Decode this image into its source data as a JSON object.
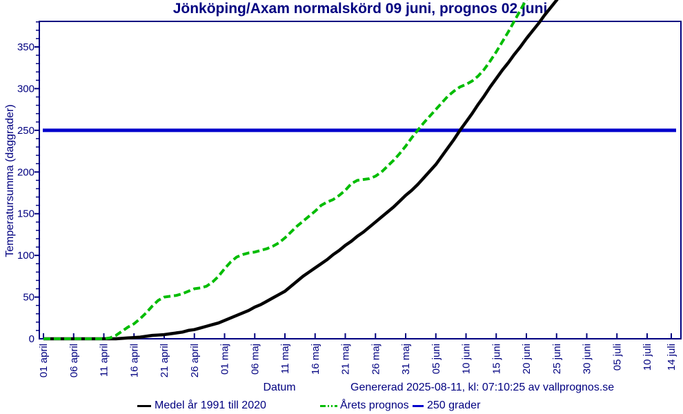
{
  "title": "Jönköping/Axam normalskörd 09 juni, prognos 02 juni",
  "footer": {
    "xlabel": "Datum",
    "generated": "Genererad 2025-08-11, kl: 07:10:25 av vallprognos.se"
  },
  "colors": {
    "text_navy": "#000080",
    "frame_navy": "#000080",
    "mean_line": "#000000",
    "forecast_line": "#00bc00",
    "threshold_line": "#0000cc"
  },
  "chart_data": {
    "type": "line",
    "title": "Jönköping/Axam normalskörd 09 juni, prognos 02 juni",
    "xlabel": "Datum",
    "ylabel": "Temperatursumma (daggrader)",
    "ylim": [
      0,
      380
    ],
    "y_major_ticks": [
      0,
      50,
      100,
      150,
      200,
      250,
      300,
      350
    ],
    "y_minor_step": 10,
    "grid": false,
    "legend_position": "bottom",
    "x_ticks": [
      {
        "day": 0,
        "label": "01 april"
      },
      {
        "day": 5,
        "label": "06 april"
      },
      {
        "day": 10,
        "label": "11 april"
      },
      {
        "day": 15,
        "label": "16 april"
      },
      {
        "day": 20,
        "label": "21 april"
      },
      {
        "day": 25,
        "label": "26 april"
      },
      {
        "day": 30,
        "label": "01 maj"
      },
      {
        "day": 35,
        "label": "06 maj"
      },
      {
        "day": 40,
        "label": "11 maj"
      },
      {
        "day": 45,
        "label": "16 maj"
      },
      {
        "day": 50,
        "label": "21 maj"
      },
      {
        "day": 55,
        "label": "26 maj"
      },
      {
        "day": 60,
        "label": "31 maj"
      },
      {
        "day": 65,
        "label": "05 juni"
      },
      {
        "day": 70,
        "label": "10 juni"
      },
      {
        "day": 75,
        "label": "15 juni"
      },
      {
        "day": 80,
        "label": "20 juni"
      },
      {
        "day": 85,
        "label": "25 juni"
      },
      {
        "day": 90,
        "label": "30 juni"
      },
      {
        "day": 95,
        "label": "05 juli"
      },
      {
        "day": 100,
        "label": "10 juli"
      },
      {
        "day": 104,
        "label": "14 juli"
      }
    ],
    "series": [
      {
        "name": "Medel år 1991 till 2020",
        "type": "line",
        "style": "solid",
        "color": "#000000",
        "points": [
          [
            0,
            0
          ],
          [
            5,
            0
          ],
          [
            10,
            0
          ],
          [
            12,
            0
          ],
          [
            13,
            0.5
          ],
          [
            14,
            1
          ],
          [
            15,
            1.5
          ],
          [
            16,
            2
          ],
          [
            17,
            3
          ],
          [
            18,
            4
          ],
          [
            19,
            4.5
          ],
          [
            20,
            5
          ],
          [
            21,
            6
          ],
          [
            22,
            7
          ],
          [
            23,
            8
          ],
          [
            24,
            10
          ],
          [
            25,
            11
          ],
          [
            26,
            13
          ],
          [
            27,
            15
          ],
          [
            28,
            17
          ],
          [
            29,
            19
          ],
          [
            30,
            22
          ],
          [
            31,
            25
          ],
          [
            32,
            28
          ],
          [
            33,
            31
          ],
          [
            34,
            34
          ],
          [
            35,
            38
          ],
          [
            36,
            41
          ],
          [
            37,
            45
          ],
          [
            38,
            49
          ],
          [
            39,
            53
          ],
          [
            40,
            57
          ],
          [
            41,
            63
          ],
          [
            42,
            69
          ],
          [
            43,
            75
          ],
          [
            44,
            80
          ],
          [
            45,
            85
          ],
          [
            46,
            90
          ],
          [
            47,
            95
          ],
          [
            48,
            101
          ],
          [
            49,
            106
          ],
          [
            50,
            112
          ],
          [
            51,
            117
          ],
          [
            52,
            123
          ],
          [
            53,
            128
          ],
          [
            54,
            134
          ],
          [
            55,
            140
          ],
          [
            56,
            146
          ],
          [
            57,
            152
          ],
          [
            58,
            158
          ],
          [
            59,
            165
          ],
          [
            60,
            172
          ],
          [
            61,
            178
          ],
          [
            62,
            185
          ],
          [
            63,
            193
          ],
          [
            64,
            201
          ],
          [
            65,
            209
          ],
          [
            66,
            219
          ],
          [
            67,
            229
          ],
          [
            68,
            239
          ],
          [
            69,
            250
          ],
          [
            70,
            260
          ],
          [
            71,
            270
          ],
          [
            72,
            281
          ],
          [
            73,
            291
          ],
          [
            74,
            302
          ],
          [
            75,
            312
          ],
          [
            76,
            322
          ],
          [
            77,
            331
          ],
          [
            78,
            341
          ],
          [
            79,
            350
          ],
          [
            80,
            360
          ],
          [
            81,
            369
          ],
          [
            82,
            378
          ],
          [
            83,
            388
          ],
          [
            84,
            397
          ],
          [
            85,
            406
          ],
          [
            86,
            416
          ]
        ]
      },
      {
        "name": "Årets prognos",
        "type": "line",
        "style": "dashed",
        "color": "#00bc00",
        "points": [
          [
            0,
            0
          ],
          [
            2,
            0
          ],
          [
            4,
            0
          ],
          [
            6,
            0
          ],
          [
            8,
            0
          ],
          [
            10,
            0
          ],
          [
            11,
            1
          ],
          [
            12,
            4
          ],
          [
            13,
            9
          ],
          [
            14,
            14
          ],
          [
            15,
            18
          ],
          [
            16,
            24
          ],
          [
            17,
            31
          ],
          [
            18,
            39
          ],
          [
            19,
            46
          ],
          [
            20,
            50
          ],
          [
            21,
            51
          ],
          [
            22,
            52
          ],
          [
            23,
            54
          ],
          [
            24,
            57
          ],
          [
            25,
            60
          ],
          [
            26,
            61
          ],
          [
            27,
            63
          ],
          [
            28,
            68
          ],
          [
            29,
            75
          ],
          [
            30,
            84
          ],
          [
            31,
            92
          ],
          [
            32,
            98
          ],
          [
            33,
            101
          ],
          [
            34,
            103
          ],
          [
            35,
            104
          ],
          [
            36,
            106
          ],
          [
            37,
            108
          ],
          [
            38,
            111
          ],
          [
            39,
            115
          ],
          [
            40,
            121
          ],
          [
            41,
            128
          ],
          [
            42,
            135
          ],
          [
            43,
            141
          ],
          [
            44,
            147
          ],
          [
            45,
            153
          ],
          [
            46,
            160
          ],
          [
            47,
            164
          ],
          [
            48,
            167
          ],
          [
            49,
            172
          ],
          [
            50,
            178
          ],
          [
            51,
            186
          ],
          [
            52,
            190
          ],
          [
            53,
            191
          ],
          [
            54,
            192
          ],
          [
            55,
            195
          ],
          [
            56,
            200
          ],
          [
            57,
            207
          ],
          [
            58,
            214
          ],
          [
            59,
            222
          ],
          [
            60,
            231
          ],
          [
            61,
            241
          ],
          [
            62,
            250
          ],
          [
            63,
            259
          ],
          [
            64,
            267
          ],
          [
            65,
            275
          ],
          [
            66,
            283
          ],
          [
            67,
            291
          ],
          [
            68,
            297
          ],
          [
            69,
            302
          ],
          [
            70,
            305
          ],
          [
            71,
            309
          ],
          [
            72,
            315
          ],
          [
            73,
            323
          ],
          [
            74,
            333
          ],
          [
            75,
            344
          ],
          [
            76,
            356
          ],
          [
            77,
            368
          ],
          [
            78,
            381
          ],
          [
            79,
            394
          ],
          [
            80,
            407
          ],
          [
            81,
            420
          ]
        ]
      },
      {
        "name": "250 grader",
        "type": "hline",
        "style": "solid",
        "color": "#0000cc",
        "value": 250
      }
    ]
  }
}
